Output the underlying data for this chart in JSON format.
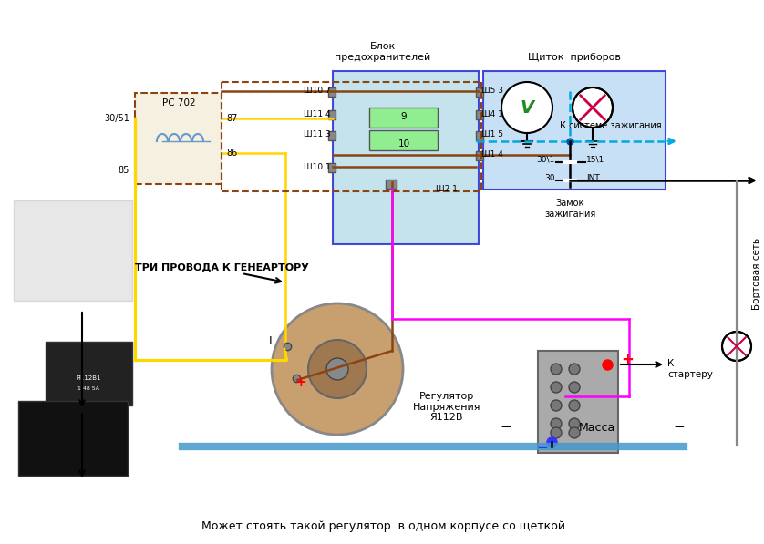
{
  "bg_color": "#ffffff",
  "texts": {
    "blok_label": "Блок\nпредохранителей",
    "schitok_label": "Щиток  приборов",
    "pc702": "РС 702",
    "t30_51": "30/51",
    "t85": "85",
    "t87": "87",
    "t86": "86",
    "sh107": "Ш10 7",
    "sh114": "Ш11 4",
    "sh113": "Ш11 3",
    "sh101": "Ш10 1",
    "sh53": "Ш5 3",
    "sh41": "Ш4 1",
    "sh15": "Ш1 5",
    "sh14": "Ш1 4",
    "sh21": "Ш2 1",
    "fuse9": "9",
    "fuse10": "10",
    "tri_provoda": "ТРИ ПРОВОДА К ГЕНЕАРТОРУ",
    "L_label": "L",
    "reg_napr": "Регулятор\nНапряжения\nЯ112В",
    "k_starteru": "К\nстартеру",
    "bortovaya": "Бортовая сеть",
    "massa": "Масса",
    "k_sisteme": "К системе зажигания",
    "zamok": "Замок\nзажигания",
    "t30_1": "30\\1",
    "t15_1": "15\\1",
    "t30": "30",
    "int_label": "INT",
    "bottom_text": "Может стоять такой регулятор  в одном корпусе со щеткой"
  },
  "colors": {
    "yellow": "#FFD700",
    "brown": "#8B4513",
    "magenta": "#FF00FF",
    "black": "#000000",
    "blue_dark": "#0000CD",
    "gray": "#888888",
    "red": "#FF0000",
    "fuse_green": "#90EE90",
    "schitok_blue": "#B0D4F1",
    "blue_rect": "#ADD8E6"
  }
}
